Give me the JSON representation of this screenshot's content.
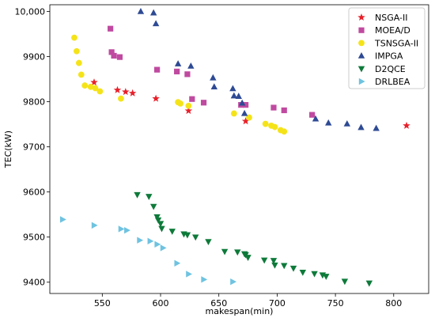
{
  "chart_data": {
    "type": "scatter",
    "xlabel": "makespan(min)",
    "ylabel": "TEC(kW)",
    "xlim": [
      505,
      830
    ],
    "ylim": [
      9375,
      10015
    ],
    "x_ticks": [
      {
        "value": 550,
        "label": "550"
      },
      {
        "value": 600,
        "label": "600"
      },
      {
        "value": 650,
        "label": "650"
      },
      {
        "value": 700,
        "label": "700"
      },
      {
        "value": 750,
        "label": "750"
      },
      {
        "value": 800,
        "label": "800"
      }
    ],
    "y_ticks": [
      {
        "value": 9400,
        "label": "9400"
      },
      {
        "value": 9500,
        "label": "9500"
      },
      {
        "value": 9600,
        "label": "9600"
      },
      {
        "value": 9700,
        "label": "9700"
      },
      {
        "value": 9800,
        "label": "9800"
      },
      {
        "value": 9900,
        "label": "9900"
      },
      {
        "value": 10000,
        "label": "10,000"
      }
    ],
    "legend_position": "top-right",
    "series": [
      {
        "name": "NSGA-II",
        "marker": "star",
        "color": "#e8202a",
        "points": [
          [
            543,
            9843
          ],
          [
            563,
            9826
          ],
          [
            570,
            9822
          ],
          [
            576,
            9819
          ],
          [
            596,
            9807
          ],
          [
            624,
            9780
          ],
          [
            673,
            9757
          ],
          [
            811,
            9747
          ]
        ]
      },
      {
        "name": "MOEA/D",
        "marker": "square",
        "color": "#c04aa0",
        "points": [
          [
            557,
            9962
          ],
          [
            558,
            9910
          ],
          [
            560,
            9902
          ],
          [
            565,
            9899
          ],
          [
            597,
            9871
          ],
          [
            614,
            9867
          ],
          [
            623,
            9861
          ],
          [
            627,
            9806
          ],
          [
            637,
            9798
          ],
          [
            669,
            9793
          ],
          [
            673,
            9793
          ],
          [
            697,
            9787
          ],
          [
            706,
            9781
          ],
          [
            730,
            9771
          ]
        ]
      },
      {
        "name": "TSNSGA-II",
        "marker": "circle",
        "color": "#f5e31a",
        "points": [
          [
            526,
            9942
          ],
          [
            528,
            9912
          ],
          [
            530,
            9886
          ],
          [
            532,
            9860
          ],
          [
            535,
            9836
          ],
          [
            540,
            9833
          ],
          [
            544,
            9830
          ],
          [
            548,
            9823
          ],
          [
            566,
            9807
          ],
          [
            615,
            9799
          ],
          [
            617,
            9796
          ],
          [
            624,
            9791
          ],
          [
            663,
            9774
          ],
          [
            676,
            9765
          ],
          [
            690,
            9751
          ],
          [
            695,
            9747
          ],
          [
            698,
            9744
          ],
          [
            703,
            9737
          ],
          [
            706,
            9734
          ]
        ]
      },
      {
        "name": "IMPGA",
        "marker": "triangle-up",
        "color": "#2e4a94",
        "points": [
          [
            583,
            10000
          ],
          [
            594,
            9997
          ],
          [
            596,
            9973
          ],
          [
            615,
            9884
          ],
          [
            626,
            9879
          ],
          [
            645,
            9853
          ],
          [
            646,
            9833
          ],
          [
            662,
            9829
          ],
          [
            663,
            9813
          ],
          [
            667,
            9812
          ],
          [
            670,
            9797
          ],
          [
            672,
            9774
          ],
          [
            733,
            9762
          ],
          [
            744,
            9753
          ],
          [
            760,
            9751
          ],
          [
            772,
            9743
          ],
          [
            785,
            9741
          ]
        ]
      },
      {
        "name": "D2QCE",
        "marker": "triangle-down",
        "color": "#0e7a3a",
        "points": [
          [
            580,
            9594
          ],
          [
            590,
            9590
          ],
          [
            594,
            9568
          ],
          [
            597,
            9545
          ],
          [
            598,
            9538
          ],
          [
            600,
            9530
          ],
          [
            601,
            9519
          ],
          [
            610,
            9513
          ],
          [
            620,
            9507
          ],
          [
            623,
            9505
          ],
          [
            630,
            9500
          ],
          [
            641,
            9490
          ],
          [
            655,
            9468
          ],
          [
            666,
            9467
          ],
          [
            672,
            9463
          ],
          [
            673,
            9461
          ],
          [
            675,
            9455
          ],
          [
            689,
            9449
          ],
          [
            697,
            9448
          ],
          [
            698,
            9438
          ],
          [
            706,
            9437
          ],
          [
            714,
            9431
          ],
          [
            722,
            9422
          ],
          [
            732,
            9419
          ],
          [
            739,
            9416
          ],
          [
            742,
            9413
          ],
          [
            758,
            9402
          ],
          [
            779,
            9398
          ]
        ]
      },
      {
        "name": "DRLBEA",
        "marker": "triangle-right",
        "color": "#6ec3e0",
        "points": [
          [
            516,
            9539
          ],
          [
            543,
            9526
          ],
          [
            566,
            9518
          ],
          [
            571,
            9515
          ],
          [
            582,
            9493
          ],
          [
            591,
            9491
          ],
          [
            597,
            9484
          ],
          [
            602,
            9476
          ],
          [
            614,
            9442
          ],
          [
            624,
            9418
          ],
          [
            637,
            9406
          ],
          [
            662,
            9401
          ]
        ]
      }
    ]
  }
}
